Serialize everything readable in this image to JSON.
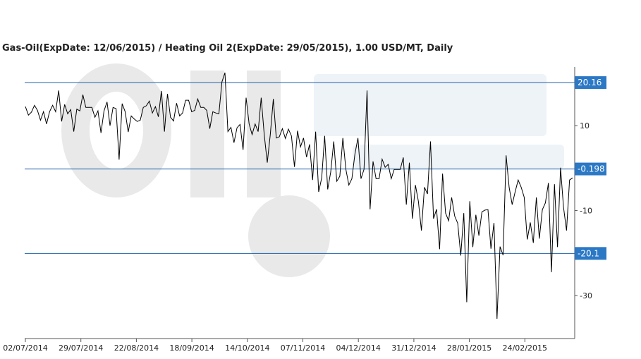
{
  "chart_data": {
    "type": "line",
    "title": "Gas-Oil(ExpDate: 12/06/2015) / Heating Oil 2(ExpDate: 29/05/2015), 1.00 USD/MT, Daily",
    "x_ticks": [
      "02/07/2014",
      "29/07/2014",
      "22/08/2014",
      "18/09/2014",
      "14/10/2014",
      "07/11/2014",
      "04/12/2014",
      "31/12/2014",
      "28/01/2015",
      "24/02/2015"
    ],
    "y_ticks": [
      10,
      -10,
      -30
    ],
    "ylim": [
      -37,
      22.5
    ],
    "reference_lines": [
      {
        "value": 20.16,
        "label": "20.16"
      },
      {
        "value": -0.198,
        "label": "-0.198"
      },
      {
        "value": -20.1,
        "label": "-20.1"
      }
    ],
    "grid": false,
    "legend": "none",
    "series": [
      {
        "values": [
          14.5,
          12.5,
          13.2,
          14.8,
          13.6,
          11.3,
          13.3,
          10.4,
          13.3,
          14.8,
          13.3,
          18.3,
          11.0,
          15.0,
          12.8,
          13.8,
          8.6,
          13.9,
          13.5,
          17.3,
          14.3,
          14.3,
          14.3,
          12.0,
          13.5,
          8.3,
          13.5,
          15.6,
          10.0,
          14.3,
          14.0,
          2.0,
          15.2,
          13.3,
          8.5,
          12.3,
          11.6,
          11.0,
          11.3,
          14.3,
          14.7,
          15.8,
          13.0,
          14.5,
          12.1,
          18.2,
          8.6,
          17.5,
          12.0,
          11.1,
          15.3,
          12.3,
          13.0,
          16.0,
          16.0,
          13.3,
          13.6,
          16.3,
          14.3,
          14.3,
          13.6,
          9.3,
          13.3,
          13.0,
          12.8,
          20.3,
          22.5,
          8.6,
          9.6,
          6.0,
          9.5,
          10.3,
          4.3,
          16.6,
          10.4,
          7.9,
          10.4,
          8.6,
          16.6,
          7.9,
          1.3,
          7.9,
          16.3,
          7.1,
          7.4,
          9.3,
          7.0,
          9.2,
          7.6,
          0.3,
          8.8,
          5.0,
          7.1,
          2.6,
          5.6,
          -2.8,
          8.6,
          -5.6,
          -2.3,
          7.6,
          -5.0,
          -0.9,
          6.3,
          -3.1,
          -1.9,
          7.1,
          -0.3,
          -4.0,
          -2.5,
          3.3,
          7.1,
          -2.5,
          -0.3,
          18.3,
          -9.7,
          1.6,
          -2.5,
          -2.5,
          2.1,
          0.2,
          0.9,
          -2.5,
          -0.3,
          -0.3,
          -0.3,
          2.5,
          -8.6,
          1.3,
          -11.9,
          -4.0,
          -7.8,
          -14.7,
          -4.5,
          -6.1,
          6.3,
          -11.9,
          -9.7,
          -19.1,
          -1.3,
          -10.6,
          -12.4,
          -6.9,
          -11.3,
          -13.0,
          -20.6,
          -10.6,
          -31.6,
          -7.8,
          -18.6,
          -11.0,
          -15.9,
          -10.3,
          -9.9,
          -9.8,
          -19.0,
          -12.9,
          -35.5,
          -18.5,
          -20.5,
          3.0,
          -4.5,
          -8.6,
          -5.6,
          -2.8,
          -4.5,
          -6.9,
          -16.8,
          -12.8,
          -17.6,
          -6.9,
          -16.6,
          -9.8,
          -8.2,
          -3.5,
          -24.5,
          -3.8,
          -18.6,
          0.1,
          -9.2,
          -14.7,
          -2.8,
          -2.3
        ]
      }
    ]
  }
}
